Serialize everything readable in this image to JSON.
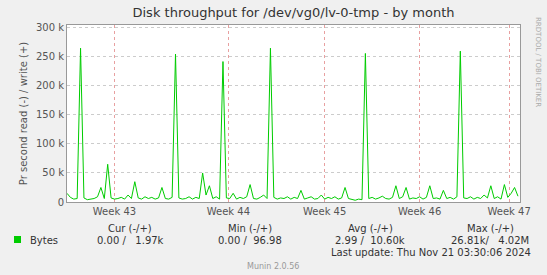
{
  "chart_data": {
    "type": "line",
    "title": "Disk throughput for /dev/vg0/lv-0-tmp - by month",
    "y_label": "Pr second read (-) / write (+)",
    "x": [
      0,
      0.25,
      0.5,
      0.75,
      1,
      1.25,
      1.5,
      1.75,
      2,
      2.25,
      2.5,
      2.75,
      3,
      3.25,
      3.5,
      3.75,
      4,
      4.25,
      4.5,
      4.75,
      5,
      5.25,
      5.5,
      5.75,
      6,
      6.25,
      6.5,
      6.75,
      7,
      7.25,
      7.5,
      7.75,
      8,
      8.25,
      8.5,
      8.75,
      9,
      9.25,
      9.5,
      9.75,
      10,
      10.25,
      10.5,
      10.75,
      11,
      11.25,
      11.5,
      11.75,
      12,
      12.25,
      12.5,
      12.75,
      13,
      13.25,
      13.5,
      13.75,
      14,
      14.25,
      14.5,
      14.75,
      15,
      15.25,
      15.5,
      15.75,
      16,
      16.25,
      16.5,
      16.75,
      17,
      17.25,
      17.5,
      17.75,
      18,
      18.25,
      18.5,
      18.75,
      19,
      19.25,
      19.5,
      19.75,
      20,
      20.25,
      20.5,
      20.75,
      21,
      21.25,
      21.5,
      21.75,
      22,
      22.25,
      22.5,
      22.75,
      23,
      23.25,
      23.5,
      23.75,
      24,
      24.25,
      24.5,
      24.75,
      25,
      25.25,
      25.5,
      25.75,
      26,
      26.25,
      26.5,
      26.75,
      27,
      27.25,
      27.5,
      27.75,
      28,
      28.25,
      28.5,
      28.75,
      29,
      29.25,
      29.5,
      29.75,
      30,
      30.25,
      30.5,
      30.75,
      31,
      31.25,
      31.5,
      31.75,
      32,
      32.25,
      32.5,
      32.75,
      33,
      33.25
    ],
    "series": [
      {
        "name": "Bytes",
        "color": "#00cc00",
        "values": [
          15000,
          8000,
          5000,
          6000,
          265000,
          7000,
          4000,
          5000,
          6000,
          9000,
          25000,
          6000,
          65000,
          7000,
          5000,
          6000,
          8000,
          5000,
          12000,
          6000,
          35000,
          7000,
          5000,
          9000,
          6000,
          8000,
          5000,
          7000,
          25000,
          6000,
          5000,
          8000,
          255000,
          7000,
          5000,
          6000,
          9000,
          5000,
          8000,
          6000,
          50000,
          12000,
          28000,
          6000,
          9000,
          5000,
          242000,
          7000,
          6000,
          15000,
          5000,
          8000,
          6000,
          9000,
          30000,
          6000,
          5000,
          8000,
          12000,
          6000,
          265000,
          8000,
          5000,
          7000,
          6000,
          9000,
          5000,
          8000,
          6000,
          20000,
          5000,
          7000,
          9000,
          5000,
          6000,
          12000,
          5000,
          8000,
          6000,
          9000,
          5000,
          7000,
          25000,
          6000,
          4000,
          3000,
          5000,
          4000,
          256000,
          6000,
          8000,
          5000,
          7000,
          10000,
          6000,
          5000,
          8000,
          28000,
          6000,
          9000,
          25000,
          5000,
          7000,
          6000,
          9000,
          5000,
          8000,
          28000,
          6000,
          7000,
          5000,
          20000,
          6000,
          8000,
          5000,
          9000,
          260000,
          7000,
          6000,
          9000,
          5000,
          8000,
          6000,
          12000,
          7000,
          28000,
          6000,
          9000,
          5000,
          30000,
          8000,
          15000,
          25000,
          10000
        ]
      }
    ],
    "xlim": [
      0,
      33.4
    ],
    "xticks": [
      {
        "value": 3.5,
        "label": "Week 43"
      },
      {
        "value": 11.9,
        "label": "Week 44"
      },
      {
        "value": 19.0,
        "label": "Week 45"
      },
      {
        "value": 26.0,
        "label": "Week 46"
      },
      {
        "value": 32.6,
        "label": "Week 47"
      }
    ],
    "ylim": [
      0,
      305000
    ],
    "yticks": [
      0,
      {
        "value": 50000,
        "label": "50 k"
      },
      {
        "value": 100000,
        "label": "100 k"
      },
      {
        "value": 150000,
        "label": "150 k"
      },
      {
        "value": 200000,
        "label": "200 k"
      },
      {
        "value": 250000,
        "label": "250 k"
      },
      {
        "value": 300000,
        "label": "300 k"
      }
    ],
    "grid": true,
    "summary": {
      "headers": [
        "Cur (-/+)",
        "Min (-/+)",
        "Avg (-/+)",
        "Max (-/+)"
      ],
      "cells": [
        "0.00 /   1.97k",
        "0.00 /  96.98",
        "2.99 /  10.60k",
        "26.81k/   4.02M"
      ]
    },
    "footer": "Last update: Thu Nov 21 03:30:06 2024",
    "credit": "Munin 2.0.56",
    "side_text": "RRDTOOL / TOBI OETIKER"
  }
}
